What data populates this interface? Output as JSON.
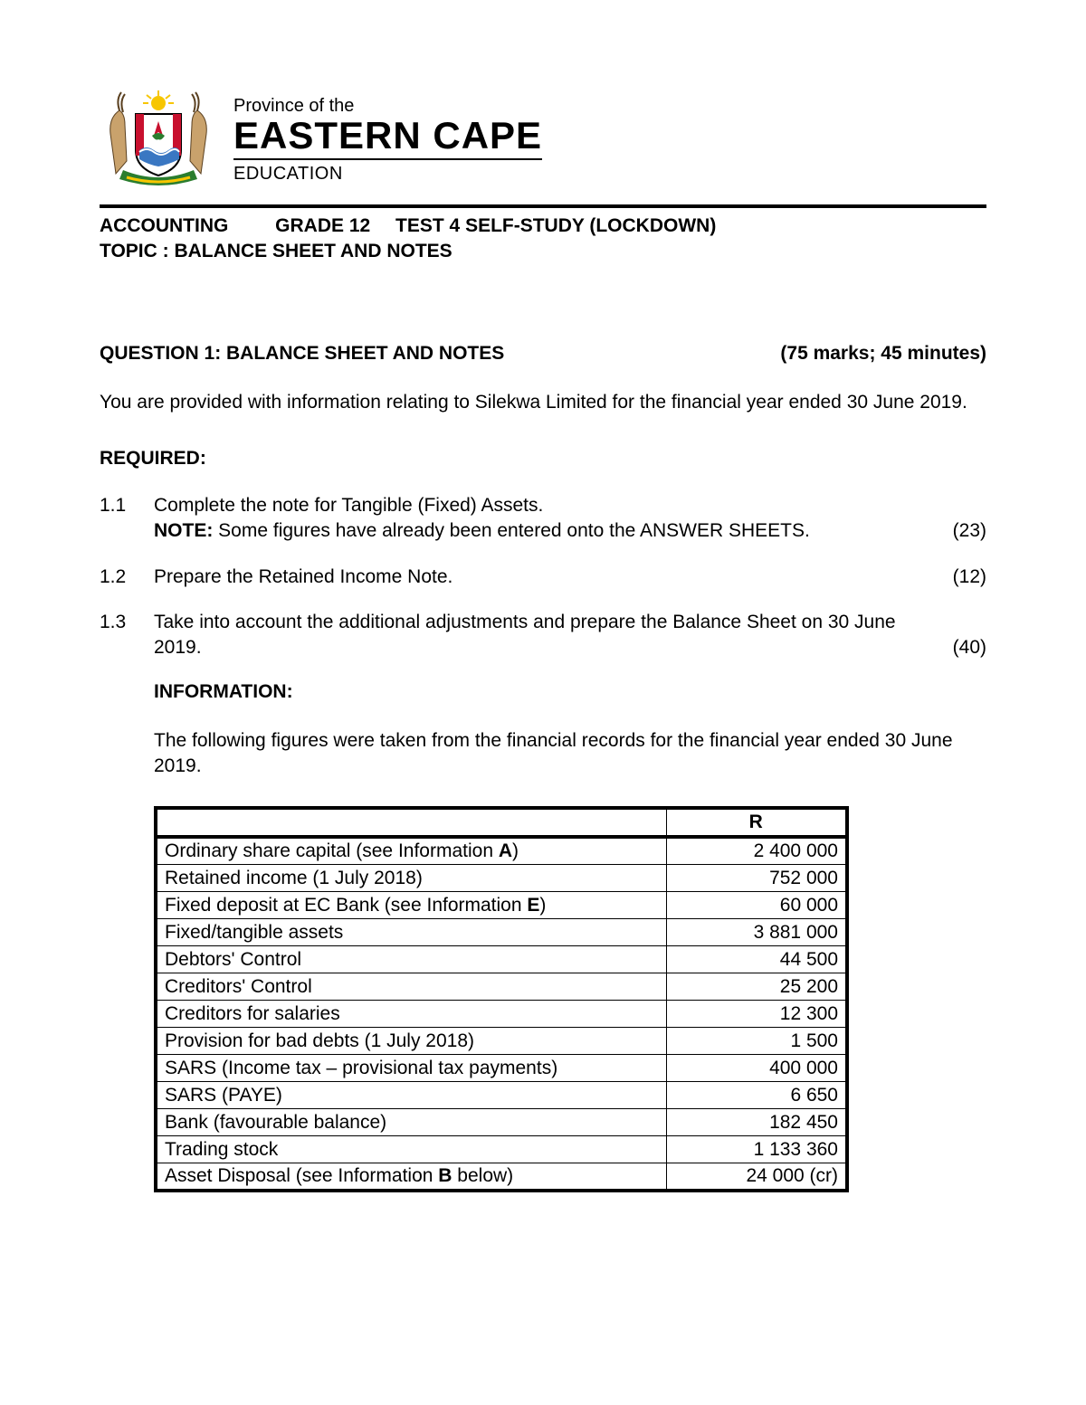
{
  "header": {
    "province_of": "Province of the",
    "province_name": "EASTERN CAPE",
    "education": "EDUCATION"
  },
  "subject_line": {
    "subject": "ACCOUNTING",
    "grade": "GRADE 12",
    "test": "TEST 4 SELF-STUDY (LOCKDOWN)",
    "topic_label": "TOPIC :  BALANCE SHEET AND NOTES"
  },
  "question": {
    "title": "QUESTION 1: BALANCE SHEET AND NOTES",
    "marks": "(75 marks; 45 minutes)"
  },
  "intro": "You are provided with information relating to Silekwa Limited for the financial year ended 30 June 2019.",
  "required_label": "REQUIRED:",
  "requirements": [
    {
      "num": "1.1",
      "body_pre": "Complete the note for Tangible (Fixed) Assets.",
      "note_label": "NOTE:",
      "note_text": " Some figures have already been entered onto the ANSWER SHEETS.",
      "marks": "(23)"
    },
    {
      "num": "1.2",
      "body_pre": "Prepare the Retained Income Note.",
      "note_label": "",
      "note_text": "",
      "marks": "(12)"
    },
    {
      "num": "1.3",
      "body_pre": "Take into account the additional adjustments and prepare the Balance Sheet on 30 June 2019.",
      "note_label": "",
      "note_text": "",
      "marks": "(40)"
    }
  ],
  "information": {
    "label": "INFORMATION:",
    "text": "The following figures were taken from the financial records for the financial year ended 30 June 2019."
  },
  "table": {
    "header_value": "R",
    "rows": [
      {
        "label_pre": "Ordinary share capital (see Information ",
        "label_bold": "A",
        "label_post": ")",
        "value": "2 400 000"
      },
      {
        "label_pre": "Retained income (1 July 2018)",
        "label_bold": "",
        "label_post": "",
        "value": "752 000"
      },
      {
        "label_pre": "Fixed deposit at EC Bank (see Information ",
        "label_bold": "E",
        "label_post": ")",
        "value": "60 000"
      },
      {
        "label_pre": "Fixed/tangible assets",
        "label_bold": "",
        "label_post": "",
        "value": "3 881 000"
      },
      {
        "label_pre": "Debtors' Control",
        "label_bold": "",
        "label_post": "",
        "value": "44 500"
      },
      {
        "label_pre": "Creditors' Control",
        "label_bold": "",
        "label_post": "",
        "value": "25 200"
      },
      {
        "label_pre": "Creditors for salaries",
        "label_bold": "",
        "label_post": "",
        "value": "12 300"
      },
      {
        "label_pre": "Provision for bad debts (1 July 2018)",
        "label_bold": "",
        "label_post": "",
        "value": "1 500"
      },
      {
        "label_pre": "SARS (Income tax – provisional tax payments)",
        "label_bold": "",
        "label_post": "",
        "value": "400 000"
      },
      {
        "label_pre": "SARS (PAYE)",
        "label_bold": "",
        "label_post": "",
        "value": "6 650"
      },
      {
        "label_pre": "Bank (favourable balance)",
        "label_bold": "",
        "label_post": "",
        "value": "182 450"
      },
      {
        "label_pre": "Trading stock",
        "label_bold": "",
        "label_post": "",
        "value": "1 133 360"
      },
      {
        "label_pre": "Asset Disposal (see Information ",
        "label_bold": "B",
        "label_post": " below)",
        "value": "24 000 (cr)"
      }
    ]
  },
  "colors": {
    "text": "#000000",
    "background": "#ffffff",
    "crest_red": "#c8102e",
    "crest_green": "#2a7d2e",
    "crest_yellow": "#f7c600",
    "crest_blue": "#3a77c2",
    "crest_tan": "#c9a26c"
  }
}
